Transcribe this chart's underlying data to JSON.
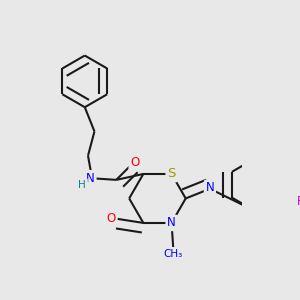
{
  "bg_color": "#e8e8e8",
  "bond_color": "#1a1a1a",
  "bond_width": 1.5,
  "dbo": 0.016,
  "atom_colors": {
    "N": "#0000ff",
    "O": "#ff0000",
    "S": "#999900",
    "F": "#cc00cc",
    "H": "#008888",
    "C": "#1a1a1a"
  },
  "fs": 8.5,
  "figsize": [
    3.0,
    3.0
  ],
  "dpi": 100
}
